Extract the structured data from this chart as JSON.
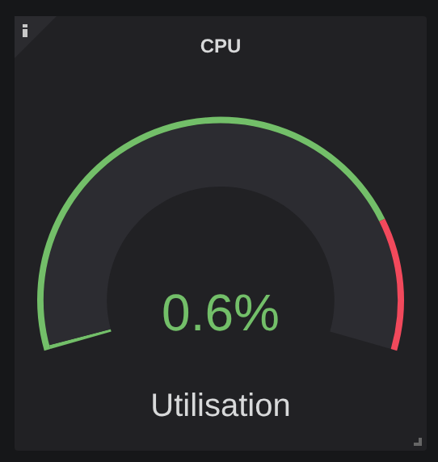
{
  "chart_data": {
    "type": "donut",
    "title": "CPU",
    "categories": [
      null,
      null
    ],
    "series": [
      {
        "values": [
          0.6,
          99.4
        ],
        "colors": [
          "#73bf69",
          "#2c2c31"
        ]
      },
      {
        "values": [
          80,
          20
        ],
        "colors": [
          "#73bf69",
          "#f2495c"
        ]
      }
    ],
    "annotations": [
      "0.6%",
      "Utilisation"
    ],
    "legend": false
  }
}
